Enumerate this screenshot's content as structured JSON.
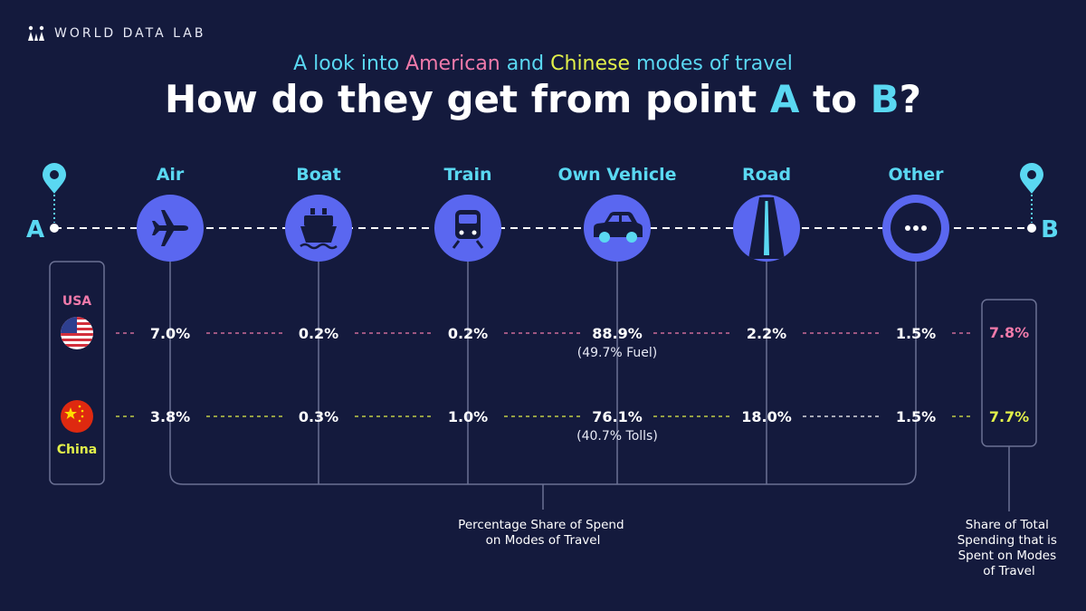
{
  "brand": {
    "name": "WORLD DATA LAB"
  },
  "header": {
    "subtitle_prefix": "A look into ",
    "subtitle_usa": "American",
    "subtitle_mid": " and ",
    "subtitle_china": "Chinese",
    "subtitle_suffix": " modes of travel",
    "title_prefix": "How do they get from point ",
    "title_a": "A",
    "title_mid": " to ",
    "title_b": "B",
    "title_suffix": "?"
  },
  "route": {
    "start": "A",
    "end": "B"
  },
  "colors": {
    "background": "#141a3d",
    "accent": "#5ad8f2",
    "icon_circle": "#5a67f0",
    "usa": "#f07aaa",
    "china": "#e2f04a",
    "line": "#6b7194"
  },
  "countries": {
    "usa": "USA",
    "china": "China"
  },
  "captions": {
    "share_of_spend": [
      "Percentage Share of Spend",
      "on Modes of Travel"
    ],
    "share_of_total": [
      "Share of Total",
      "Spending that is",
      "Spent on Modes",
      "of Travel"
    ]
  },
  "chart_data": {
    "type": "table",
    "categories": [
      "Air",
      "Boat",
      "Train",
      "Own Vehicle",
      "Road",
      "Other"
    ],
    "icons": [
      "airplane-icon",
      "ship-icon",
      "train-icon",
      "car-icon",
      "road-icon",
      "more-icon"
    ],
    "series": [
      {
        "name": "USA",
        "values": [
          7.0,
          0.2,
          0.2,
          88.9,
          2.2,
          1.5
        ],
        "labels": [
          "7.0%",
          "0.2%",
          "0.2%",
          "88.9%",
          "2.2%",
          "1.5%"
        ],
        "notes": [
          "",
          "",
          "",
          "(49.7% Fuel)",
          "",
          ""
        ],
        "total_share": 7.8,
        "total_label": "7.8%"
      },
      {
        "name": "China",
        "values": [
          3.8,
          0.3,
          1.0,
          76.1,
          18.0,
          1.5
        ],
        "labels": [
          "3.8%",
          "0.3%",
          "1.0%",
          "76.1%",
          "18.0%",
          "1.5%"
        ],
        "notes": [
          "",
          "",
          "",
          "(40.7% Tolls)",
          "",
          ""
        ],
        "total_share": 7.7,
        "total_label": "7.7%"
      }
    ]
  }
}
